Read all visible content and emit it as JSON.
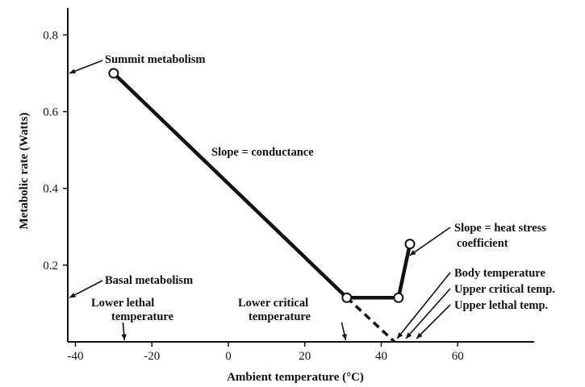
{
  "chart_data": {
    "type": "line",
    "xlabel": "Ambient temperature (°C)",
    "ylabel": "Metabolic rate (Watts)",
    "xlim": [
      -42,
      80
    ],
    "ylim": [
      0,
      0.87
    ],
    "x_ticks": [
      -40,
      -20,
      0,
      20,
      40,
      60
    ],
    "x_tick_labels": [
      "-40",
      "-20",
      "0",
      "20",
      "40",
      "60"
    ],
    "y_ticks": [
      0.2,
      0.4,
      0.6,
      0.8
    ],
    "y_tick_labels": [
      "0.2",
      "0.4",
      "0.6",
      "0.8"
    ],
    "series": [
      {
        "style": "solid",
        "points": [
          [
            -30,
            0.7
          ],
          [
            31,
            0.115
          ],
          [
            44.5,
            0.115
          ],
          [
            47.5,
            0.255
          ]
        ]
      },
      {
        "style": "dashed",
        "points": [
          [
            31,
            0.115
          ],
          [
            43.5,
            0.0
          ]
        ]
      }
    ],
    "markers": [
      [
        -30,
        0.7
      ],
      [
        31,
        0.115
      ],
      [
        44.5,
        0.115
      ],
      [
        47.5,
        0.255
      ]
    ],
    "annotations": {
      "summit": "Summit metabolism",
      "slope_conductance": "Slope = conductance",
      "slope_heat_1": "Slope = heat stress",
      "slope_heat_2": "coefficient",
      "body_temp": "Body temperature",
      "upper_critical": "Upper critical temp.",
      "upper_lethal": "Upper lethal temp.",
      "basal": "Basal metabolism",
      "lower_lethal_1": "Lower lethal",
      "lower_lethal_2": "temperature",
      "lower_critical_1": "Lower critical",
      "lower_critical_2": "temperature"
    },
    "axis_tick_values": {
      "summit_y": 0.7,
      "basal_y": 0.115,
      "lower_lethal_x": -28,
      "lower_critical_x": 30.5,
      "body_temp_x": 43.5,
      "upper_critical_x": 46,
      "upper_lethal_x": 49
    }
  }
}
